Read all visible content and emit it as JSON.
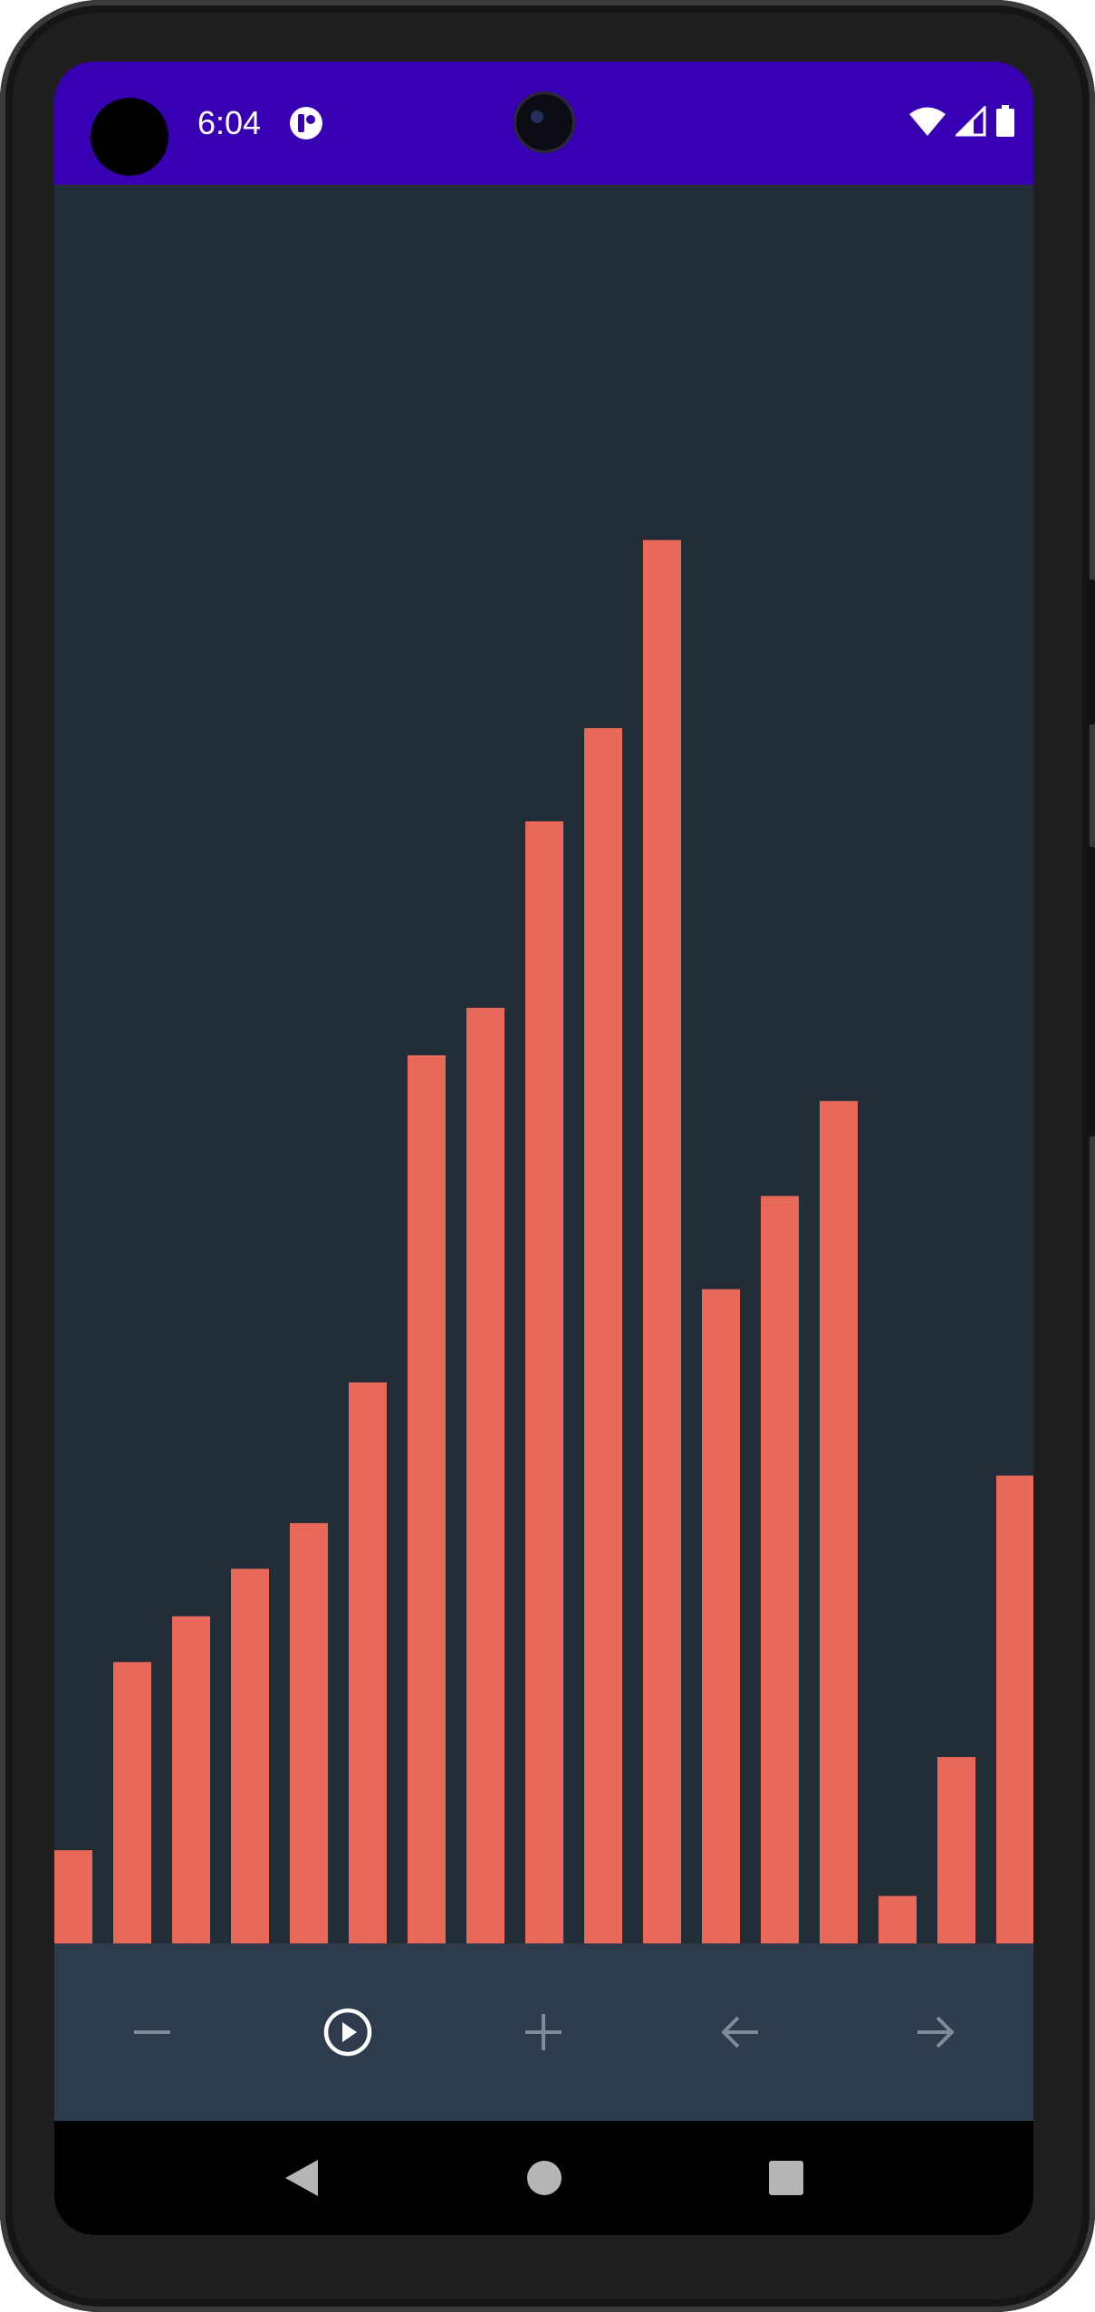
{
  "status_bar": {
    "time": "6:04",
    "background": "#3700b3",
    "icons": [
      "app-notification-icon",
      "wifi-icon",
      "cellular-signal-icon",
      "battery-icon"
    ]
  },
  "theme": {
    "screen_background": "#222d38",
    "bar_color": "#e8695a",
    "toolbar_background": "#2e3b4c",
    "icon_active": "#ffffff",
    "icon_inactive": "#7f8b99"
  },
  "chart_data": {
    "type": "bar",
    "values": [
      5.3,
      16.0,
      18.6,
      21.3,
      23.9,
      31.9,
      50.5,
      53.2,
      63.8,
      69.1,
      79.8,
      37.2,
      42.5,
      47.9,
      2.7,
      10.6,
      26.6
    ],
    "ylim": [
      0,
      100
    ],
    "grid": false,
    "legend": "none"
  },
  "toolbar": {
    "buttons": [
      {
        "name": "remove-icon",
        "state": "inactive"
      },
      {
        "name": "play-circle-icon",
        "state": "active"
      },
      {
        "name": "add-icon",
        "state": "inactive"
      },
      {
        "name": "arrow-back-icon",
        "state": "inactive"
      },
      {
        "name": "arrow-forward-icon",
        "state": "inactive"
      }
    ]
  },
  "navigation_bar": {
    "buttons": [
      "back-icon",
      "home-icon",
      "recents-icon"
    ]
  }
}
